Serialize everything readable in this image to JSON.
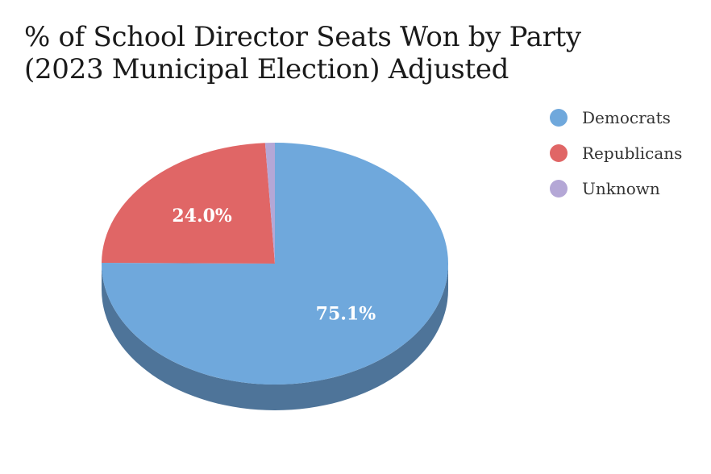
{
  "title": {
    "line1": "% of School Director Seats Won by Party",
    "line2": "(2023 Municipal Election) Adjusted"
  },
  "chart_data": {
    "type": "pie",
    "title": "% of School Director Seats Won by Party (2023 Municipal Election) Adjusted",
    "categories": [
      "Democrats",
      "Republicans",
      "Unknown"
    ],
    "values": [
      75.1,
      24.0,
      0.9
    ],
    "labels": [
      "75.1%",
      "24.0%",
      ""
    ],
    "colors": [
      "#6fa8dc",
      "#e06666",
      "#b4a7d6"
    ],
    "side_colors": [
      "#4e7499",
      "#9e4848",
      "#7e74a0"
    ],
    "style": "3d",
    "legend_position": "right"
  },
  "legend": {
    "items": [
      {
        "label": "Democrats",
        "color": "#6fa8dc"
      },
      {
        "label": "Republicans",
        "color": "#e06666"
      },
      {
        "label": "Unknown",
        "color": "#b4a7d6"
      }
    ]
  }
}
